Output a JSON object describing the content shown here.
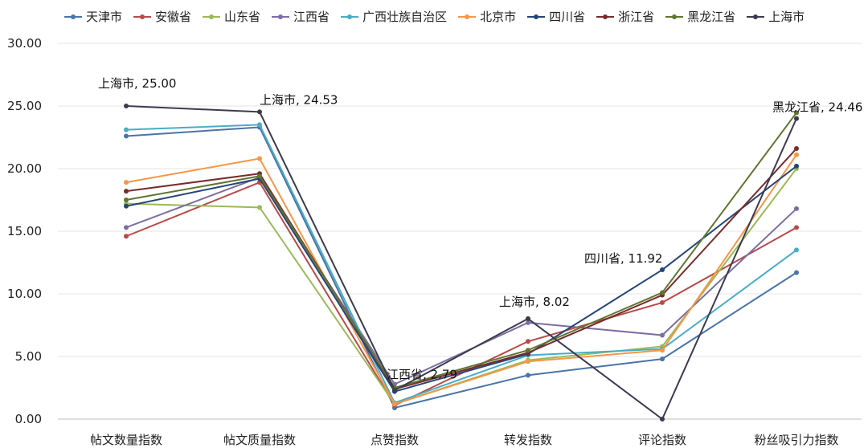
{
  "chart_data": {
    "type": "line",
    "categories": [
      "帖文数量指数",
      "帖文质量指数",
      "点赞指数",
      "转发指数",
      "评论指数",
      "粉丝吸引力指数"
    ],
    "ylim": [
      0,
      30
    ],
    "yticks": [
      "0.00",
      "5.00",
      "10.00",
      "15.00",
      "20.00",
      "25.00",
      "30.00"
    ],
    "grid": true,
    "legend": "top",
    "series": [
      {
        "name": "天津市",
        "color": "#4a74a8",
        "values": [
          22.6,
          23.3,
          0.9,
          3.5,
          4.8,
          11.7
        ]
      },
      {
        "name": "安徽省",
        "color": "#b74a4a",
        "values": [
          14.6,
          18.9,
          1.1,
          6.2,
          9.3,
          15.3
        ]
      },
      {
        "name": "山东省",
        "color": "#9aba59",
        "values": [
          17.2,
          16.9,
          1.2,
          4.7,
          5.8,
          20.0
        ]
      },
      {
        "name": "江西省",
        "color": "#7c6ea0",
        "values": [
          15.3,
          19.3,
          2.79,
          7.7,
          6.7,
          16.8
        ]
      },
      {
        "name": "广西壮族自治区",
        "color": "#4aacc6",
        "values": [
          23.1,
          23.5,
          1.3,
          5.1,
          5.6,
          13.5
        ]
      },
      {
        "name": "北京市",
        "color": "#f79646",
        "values": [
          18.9,
          20.8,
          1.2,
          4.6,
          5.5,
          21.1
        ]
      },
      {
        "name": "四川省",
        "color": "#264478",
        "values": [
          17.0,
          19.2,
          2.2,
          5.2,
          11.92,
          20.2
        ]
      },
      {
        "name": "浙江省",
        "color": "#772c2a",
        "values": [
          18.2,
          19.6,
          2.4,
          5.3,
          9.9,
          21.6
        ]
      },
      {
        "name": "黑龙江省",
        "color": "#5f7530",
        "values": [
          17.5,
          19.4,
          2.5,
          5.5,
          10.1,
          24.46
        ]
      },
      {
        "name": "上海市",
        "color": "#3b3b4f",
        "values": [
          25.0,
          24.53,
          2.3,
          8.02,
          0.0,
          24.0
        ]
      }
    ],
    "annotations": [
      {
        "text": "上海市, 25.00",
        "category": "帖文数量指数",
        "value": 25.0
      },
      {
        "text": "上海市, 24.53",
        "category": "帖文质量指数",
        "value": 24.53
      },
      {
        "text": "江西省, 2.79",
        "category": "点赞指数",
        "value": 2.79
      },
      {
        "text": "上海市, 8.02",
        "category": "转发指数",
        "value": 8.02
      },
      {
        "text": "四川省, 11.92",
        "category": "评论指数",
        "value": 11.92
      },
      {
        "text": "黑龙江省, 24.46",
        "category": "粉丝吸引力指数",
        "value": 24.46
      }
    ]
  }
}
